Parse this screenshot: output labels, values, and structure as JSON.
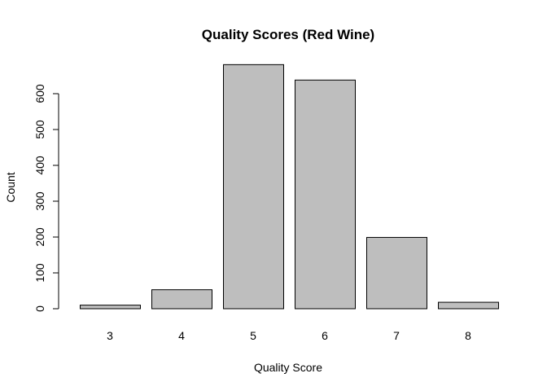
{
  "chart_data": {
    "type": "bar",
    "title": "Quality Scores (Red Wine)",
    "xlabel": "Quality Score",
    "ylabel": "Count",
    "categories": [
      "3",
      "4",
      "5",
      "6",
      "7",
      "8"
    ],
    "values": [
      10,
      53,
      681,
      638,
      199,
      18
    ],
    "yticks": [
      0,
      100,
      200,
      300,
      400,
      500,
      600
    ],
    "ylim": [
      0,
      715
    ],
    "bar_color": "#bebebe",
    "border_color": "#000000",
    "grid": false,
    "legend": "none"
  }
}
